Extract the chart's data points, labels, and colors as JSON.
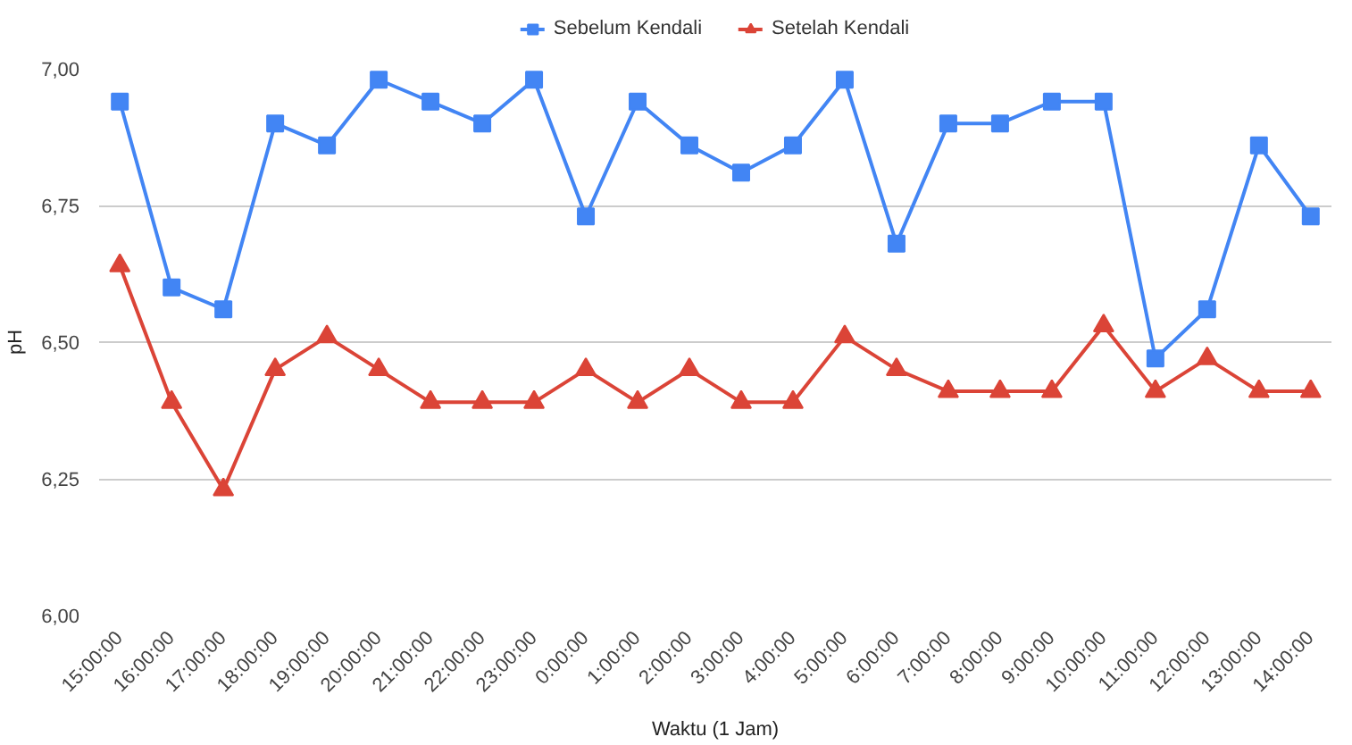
{
  "chart_data": {
    "type": "line",
    "xlabel": "Waktu (1 Jam)",
    "ylabel": "pH",
    "categories": [
      "15:00:00",
      "16:00:00",
      "17:00:00",
      "18:00:00",
      "19:00:00",
      "20:00:00",
      "21:00:00",
      "22:00:00",
      "23:00:00",
      "0:00:00",
      "1:00:00",
      "2:00:00",
      "3:00:00",
      "4:00:00",
      "5:00:00",
      "6:00:00",
      "7:00:00",
      "8:00:00",
      "9:00:00",
      "10:00:00",
      "11:00:00",
      "12:00:00",
      "13:00:00",
      "14:00:00"
    ],
    "series": [
      {
        "name": "Sebelum Kendali",
        "color": "#4285f4",
        "marker": "square",
        "values": [
          6.94,
          6.6,
          6.56,
          6.9,
          6.86,
          6.98,
          6.94,
          6.9,
          6.98,
          6.73,
          6.94,
          6.86,
          6.81,
          6.86,
          6.98,
          6.68,
          6.9,
          6.9,
          6.94,
          6.94,
          6.47,
          6.56,
          6.86,
          6.73
        ]
      },
      {
        "name": "Setelah Kendali",
        "color": "#db4437",
        "marker": "triangle",
        "values": [
          6.64,
          6.39,
          6.23,
          6.45,
          6.51,
          6.45,
          6.39,
          6.39,
          6.39,
          6.45,
          6.39,
          6.45,
          6.39,
          6.39,
          6.51,
          6.45,
          6.41,
          6.41,
          6.41,
          6.53,
          6.41,
          6.47,
          6.41,
          6.41
        ]
      }
    ],
    "ylim": [
      6.0,
      7.0
    ],
    "yticks": [
      {
        "value": 6.0,
        "label": "6,00"
      },
      {
        "value": 6.25,
        "label": "6,25"
      },
      {
        "value": 6.5,
        "label": "6,50"
      },
      {
        "value": 6.75,
        "label": "6,75"
      },
      {
        "value": 7.0,
        "label": "7,00"
      }
    ],
    "grid": "y",
    "legend": "top",
    "line_style": "solid"
  }
}
